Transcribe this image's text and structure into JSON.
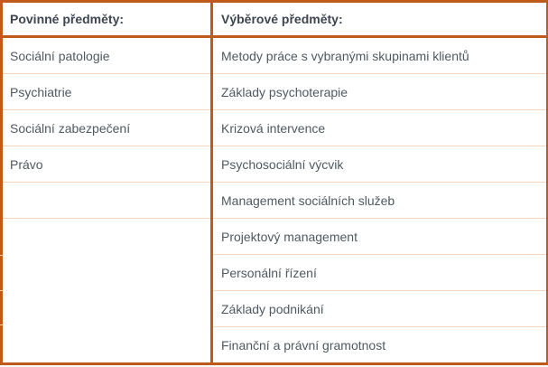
{
  "table": {
    "columns": [
      {
        "header": "Povinné předměty:",
        "items": [
          "Sociální patologie",
          "Psychiatrie",
          "Sociální zabezpečení",
          "Právo"
        ]
      },
      {
        "header": "Výběrové předměty:",
        "items": [
          "Metody práce s vybranými skupinami klientů",
          "Základy psychoterapie",
          "Krizová intervence",
          "Psychosociální výcvik",
          "Management sociálních služeb",
          "Projektový management",
          "Personální řízení",
          "Základy podnikání",
          "Finanční a právní gramotnost"
        ]
      }
    ]
  },
  "colors": {
    "border_strong": "#c05a1b",
    "divider_light": "#f7d8ba",
    "header_text": "#3d4650",
    "body_text": "#4f5961",
    "background": "#ffffff"
  }
}
